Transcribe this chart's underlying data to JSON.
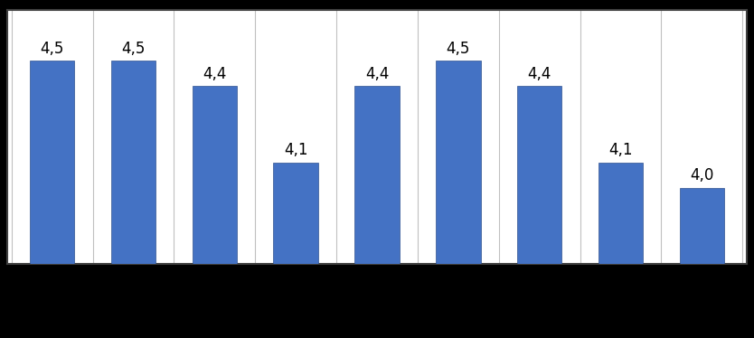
{
  "values": [
    4.5,
    4.5,
    4.4,
    4.1,
    4.4,
    4.5,
    4.4,
    4.1,
    4.0
  ],
  "bar_color": "#4472C4",
  "bar_edge_color": "#2F528F",
  "ylim": [
    3.7,
    4.7
  ],
  "label_fontsize": 12,
  "label_color": "#000000",
  "background_color": "#FFFFFF",
  "outer_background": "#000000",
  "grid_color": "#C0C0C0",
  "bar_width": 0.55,
  "border_color": "#404040",
  "border_linewidth": 1.5
}
